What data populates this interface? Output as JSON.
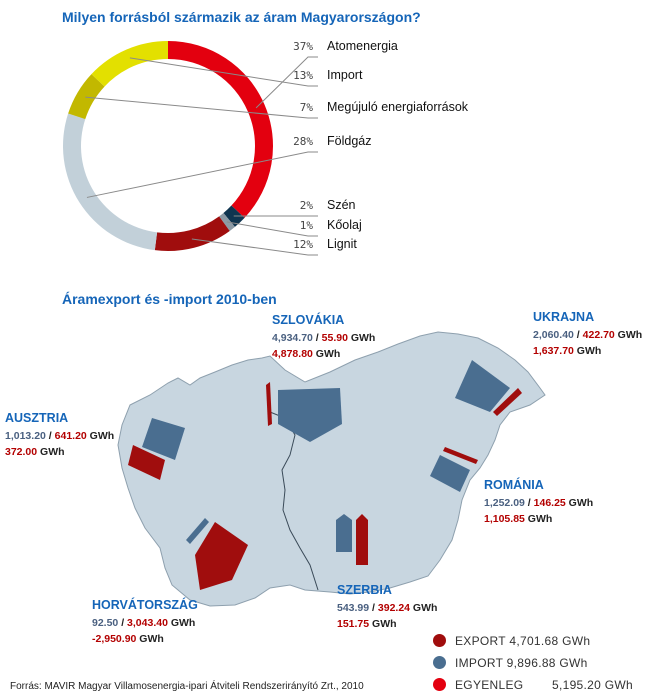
{
  "donut_title": "Milyen forrásból származik az áram Magyarországon?",
  "map_title": "Áramexport és -import 2010-ben",
  "chart_data": {
    "type": "pie",
    "variant": "donut",
    "title": "Milyen forrásból származik az áram Magyarországon?",
    "slices": [
      {
        "label": "Atomenergia",
        "pct_label": "37%",
        "value": 37,
        "color": "#e3000f"
      },
      {
        "label": "Szén",
        "pct_label": "2%",
        "value": 2,
        "color": "#0f3550"
      },
      {
        "label": "Kőolaj",
        "pct_label": "1%",
        "value": 1,
        "color": "#8c9aa5"
      },
      {
        "label": "Lignit",
        "pct_label": "12%",
        "value": 12,
        "color": "#a00d0d"
      },
      {
        "label": "Földgáz",
        "pct_label": "28%",
        "value": 28,
        "color": "#c2d0d9"
      },
      {
        "label": "Megújuló energiaforrások",
        "pct_label": "7%",
        "value": 7,
        "color": "#c2b800"
      },
      {
        "label": "Import",
        "pct_label": "13%",
        "value": 13,
        "color": "#e3e000"
      }
    ]
  },
  "countries": [
    {
      "id": "szlovakia",
      "name": "SZLOVÁKIA",
      "export": "4,934.70",
      "import": "55.90",
      "balance": "4,878.80",
      "unit": "GWh"
    },
    {
      "id": "ukrajna",
      "name": "UKRAJNA",
      "export": "2,060.40",
      "import": "422.70",
      "balance": "1,637.70",
      "unit": "GWh"
    },
    {
      "id": "ausztria",
      "name": "AUSZTRIA",
      "export": "1,013.20",
      "import": "641.20",
      "balance": "372.00",
      "unit": "GWh"
    },
    {
      "id": "romania",
      "name": "ROMÁNIA",
      "export": "1,252.09",
      "import": "146.25",
      "balance": "1,105.85",
      "unit": "GWh"
    },
    {
      "id": "horvatorszag",
      "name": "HORVÁTORSZÁG",
      "export": "92.50",
      "import": "3,043.40",
      "balance": "-2,950.90",
      "unit": "GWh"
    },
    {
      "id": "szerbia",
      "name": "SZERBIA",
      "export": "543.99",
      "import": "392.24",
      "balance": "151.75",
      "unit": "GWh"
    }
  ],
  "legend": {
    "export_label": "EXPORT",
    "export_value": "4,701.68 GWh",
    "import_label": "IMPORT",
    "import_value": "9,896.88 GWh",
    "balance_label": "EGYENLEG",
    "balance_value": "5,195.20 GWh",
    "colors": {
      "export": "#a00d0d",
      "import": "#4a6e90",
      "balance": "#e3000f"
    }
  },
  "footer": "Forrás: MAVIR Magyar Villamosenergia-ipari Átviteli Rendszerirányító Zrt., 2010"
}
